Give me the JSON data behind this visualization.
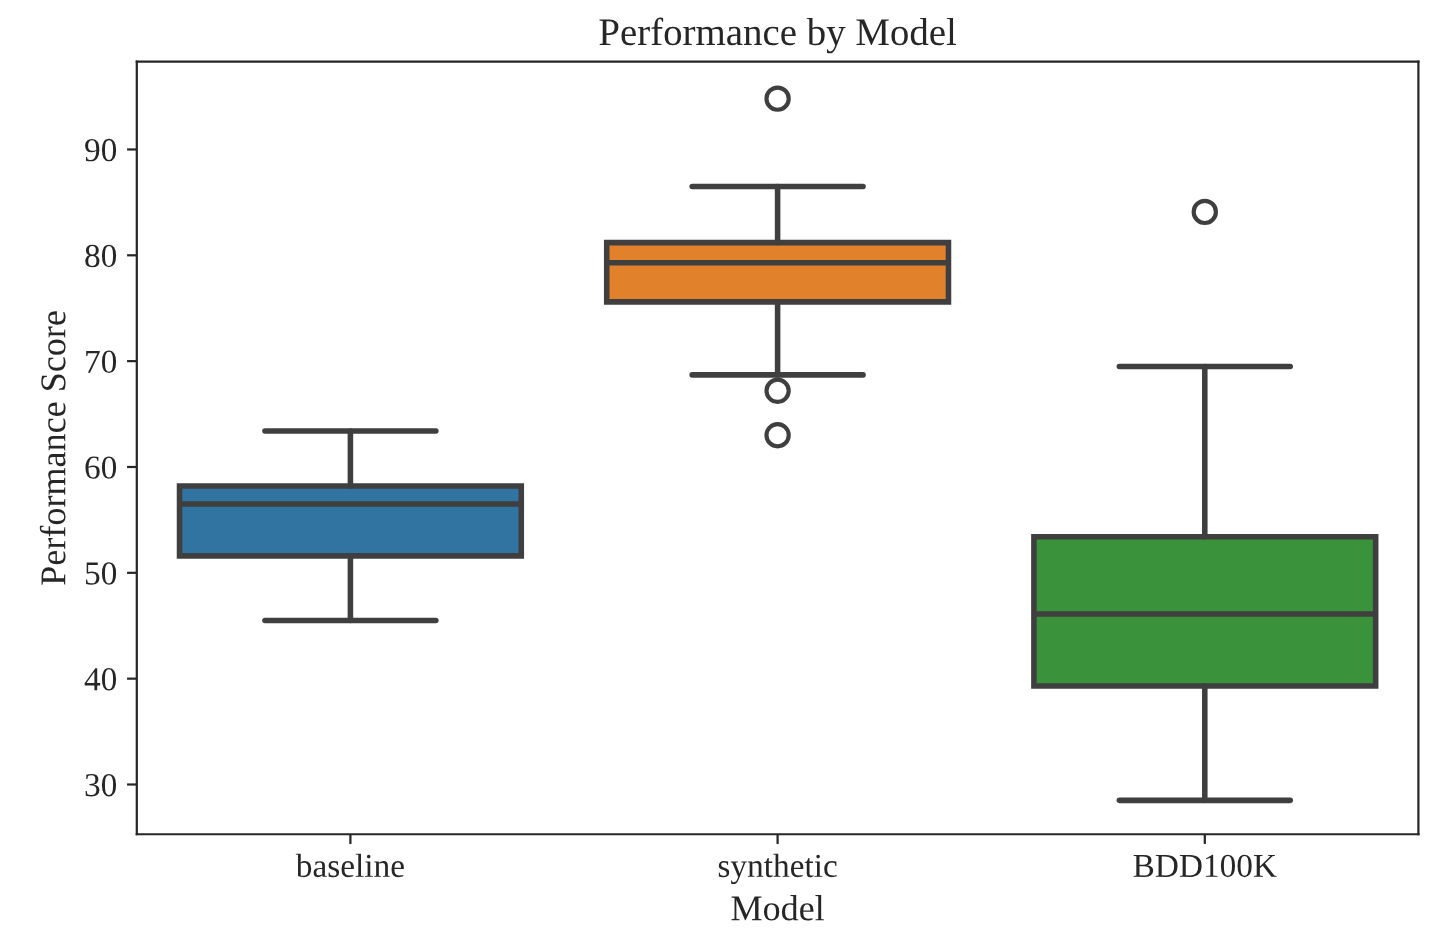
{
  "chart_data": {
    "type": "box",
    "title": "Performance by Model",
    "xlabel": "Model",
    "ylabel": "Performance Score",
    "categories": [
      "baseline",
      "synthetic",
      "BDD100K"
    ],
    "colors": [
      "#3274a1",
      "#e1812c",
      "#3a923a"
    ],
    "boxes": [
      {
        "low": 45.5,
        "q1": 51.6,
        "median": 56.5,
        "q3": 58.2,
        "high": 63.4
      },
      {
        "low": 68.7,
        "q1": 75.6,
        "median": 79.3,
        "q3": 81.2,
        "high": 86.5,
        "outliers": [
          94.8,
          67.2,
          63.0
        ]
      },
      {
        "low": 28.5,
        "q1": 39.3,
        "median": 46.1,
        "q3": 53.4,
        "high": 69.5,
        "outliers": [
          84.1
        ]
      }
    ],
    "ylim": [
      25.3,
      98.3
    ],
    "yticks": [
      30,
      40,
      50,
      60,
      70,
      80,
      90
    ],
    "grid": false,
    "legend": false
  }
}
